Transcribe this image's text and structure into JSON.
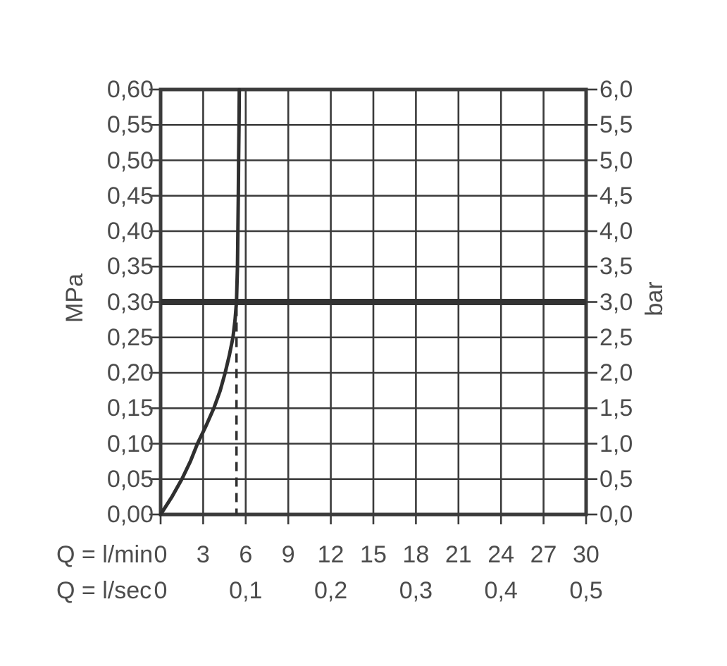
{
  "chart_data": {
    "type": "line",
    "title": "",
    "grid": true,
    "legend": "none",
    "colors": {
      "background": "#ffffff",
      "grid_line": "#3b3b3b",
      "curve_line": "#2f2f2f",
      "reference_line": "#333333",
      "text": "#4c4c4c"
    },
    "axes": {
      "left": {
        "unit_label": "MPa",
        "range": [
          0.0,
          0.6
        ],
        "ticks": [
          "0,60",
          "0,55",
          "0,50",
          "0,45",
          "0,40",
          "0,35",
          "0,30",
          "0,25",
          "0,20",
          "0,15",
          "0,10",
          "0,05",
          "0,00"
        ]
      },
      "right": {
        "unit_label": "bar",
        "range": [
          0.0,
          6.0
        ],
        "ticks": [
          "6,0",
          "5,5",
          "5,0",
          "4,5",
          "4,0",
          "3,5",
          "3,0",
          "2,5",
          "2,0",
          "1,5",
          "1,0",
          "0,5",
          "0,0"
        ]
      },
      "bottom_lmin": {
        "unit_label": "Q = l/min",
        "range": [
          0,
          30
        ],
        "ticks": [
          "0",
          "3",
          "6",
          "9",
          "12",
          "15",
          "18",
          "21",
          "24",
          "27",
          "30"
        ]
      },
      "bottom_lsec": {
        "unit_label": "Q = l/sec",
        "range": [
          0.0,
          0.5
        ],
        "ticks": [
          "0",
          "0,1",
          "0,2",
          "0,3",
          "0,4",
          "0,5"
        ]
      }
    },
    "series": [
      {
        "name": "flow-pressure-curve",
        "x_lmin": [
          0,
          0.8,
          1.5,
          2.1,
          2.6,
          3.2,
          3.75,
          4.2,
          4.55,
          4.85,
          5.1,
          5.25,
          5.35,
          5.42,
          5.45,
          5.48,
          5.5,
          5.53,
          5.55
        ],
        "y_mpa": [
          0,
          0.025,
          0.05,
          0.075,
          0.1,
          0.125,
          0.15,
          0.175,
          0.2,
          0.225,
          0.25,
          0.275,
          0.3,
          0.35,
          0.4,
          0.45,
          0.5,
          0.55,
          0.6
        ]
      }
    ],
    "reference_line": {
      "y_mpa": 0.3,
      "y_bar": 3.0,
      "orientation": "horizontal",
      "style": "thick-solid"
    },
    "dashed_marker": {
      "x_lmin": 5.35,
      "from_mpa": 0.0,
      "to_mpa": 0.3,
      "orientation": "vertical",
      "style": "dashed"
    }
  }
}
